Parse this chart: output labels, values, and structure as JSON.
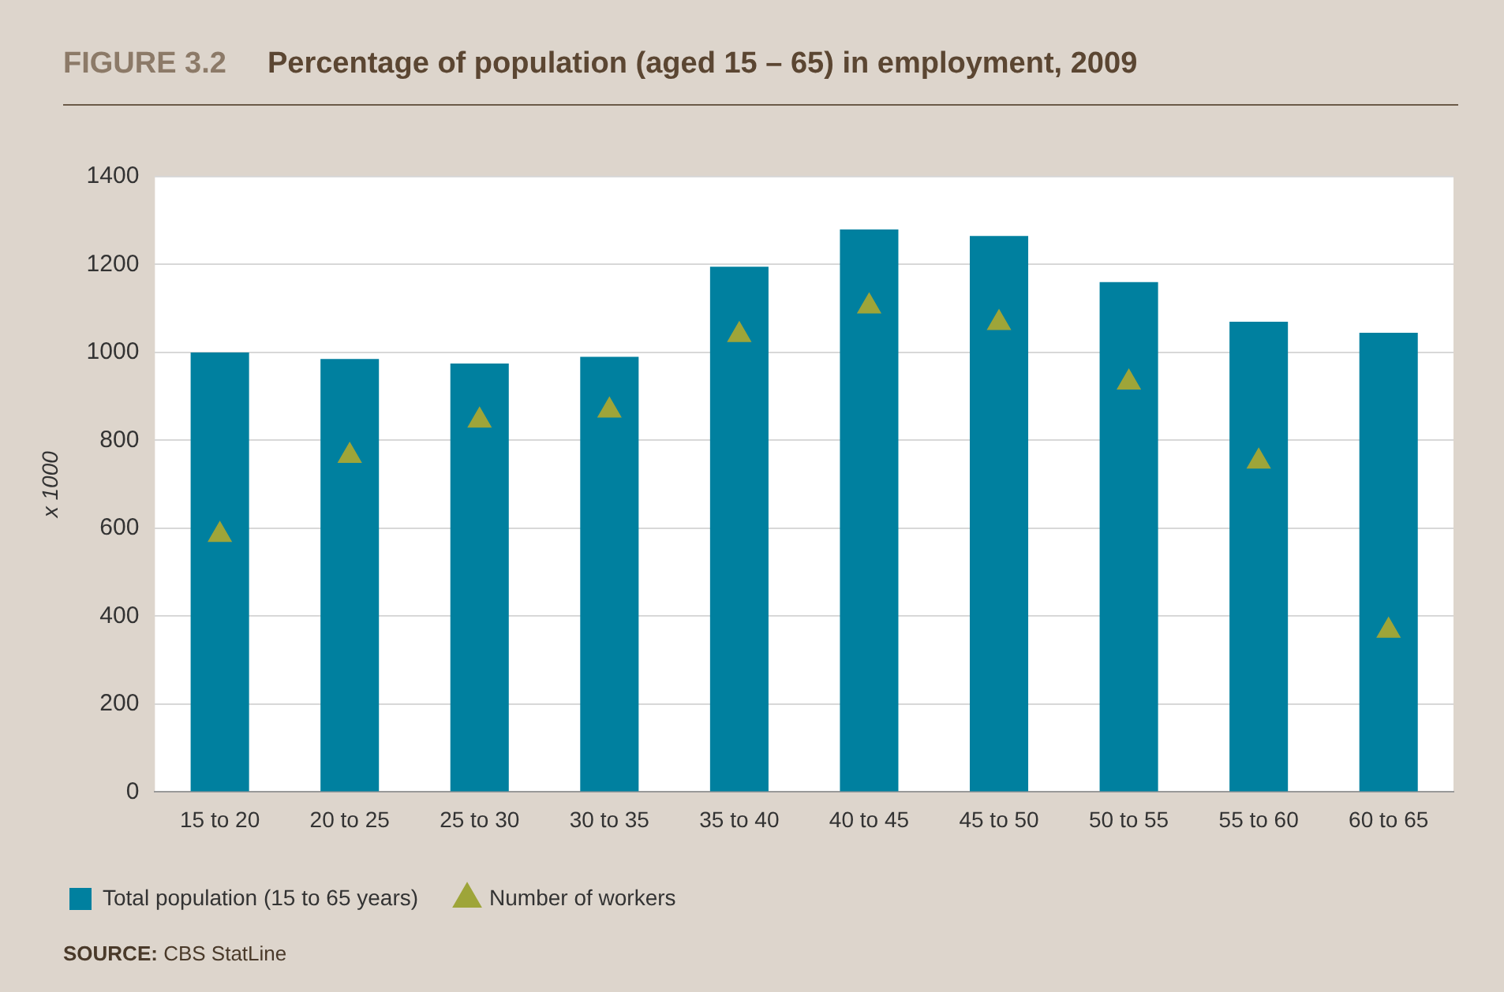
{
  "chart_data": {
    "type": "bar",
    "title": "Percentage of population (aged 15 – 65) in employment, 2009",
    "ylabel": "x 1000",
    "annotations": [
      "FIGURE 3.2",
      "SOURCE: CBS StatLine"
    ],
    "categories": [
      "15 to 20",
      "20 to 25",
      "25 to 30",
      "30 to 35",
      "35 to 40",
      "40 to 45",
      "45 to 50",
      "50 to 55",
      "55 to 60",
      "60 to 65"
    ],
    "series": [
      {
        "name": "Total population (15 to 65 years)",
        "color": "#00809f",
        "values": [
          1000,
          985,
          975,
          990,
          1195,
          1280,
          1265,
          1160,
          1070,
          1045
        ]
      },
      {
        "name": "Number of workers",
        "type": "scatter",
        "marker": "triangle",
        "color": "#9ea539",
        "values": [
          585,
          765,
          845,
          868,
          1040,
          1105,
          1067,
          932,
          752,
          367
        ]
      }
    ],
    "ylim": [
      0,
      1400
    ],
    "yticks": [
      0,
      200,
      400,
      600,
      800,
      1000,
      1200,
      1400
    ],
    "grid": "y",
    "legend": "bottom left"
  }
}
